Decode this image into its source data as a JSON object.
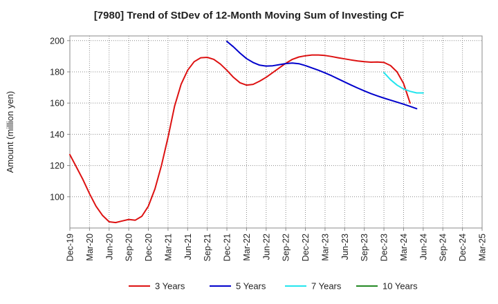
{
  "chart_data": {
    "type": "line",
    "title": "[7980]  Trend of StDev of 12-Month Moving Sum of Investing CF",
    "xlabel": "",
    "ylabel": "Amount (million yen)",
    "ylim": [
      80,
      203
    ],
    "y_ticks": [
      100,
      120,
      140,
      160,
      180,
      200
    ],
    "x_ticks": [
      "Dec-19",
      "Mar-20",
      "Jun-20",
      "Sep-20",
      "Dec-20",
      "Mar-21",
      "Jun-21",
      "Sep-21",
      "Dec-21",
      "Mar-22",
      "Jun-22",
      "Sep-22",
      "Dec-22",
      "Mar-23",
      "Jun-23",
      "Sep-23",
      "Dec-23",
      "Mar-24",
      "Jun-24",
      "Sep-24",
      "Dec-24",
      "Mar-25"
    ],
    "grid": true,
    "legend_position": "bottom",
    "series": [
      {
        "name": "3 Years",
        "color": "#dd1111",
        "points": [
          [
            "Dec-19",
            127
          ],
          [
            "Jan-20",
            119
          ],
          [
            "Feb-20",
            111
          ],
          [
            "Mar-20",
            102
          ],
          [
            "Apr-20",
            94
          ],
          [
            "May-20",
            88
          ],
          [
            "Jun-20",
            84
          ],
          [
            "Jul-20",
            83.5
          ],
          [
            "Aug-20",
            84.5
          ],
          [
            "Sep-20",
            85.5
          ],
          [
            "Oct-20",
            85
          ],
          [
            "Nov-20",
            87.5
          ],
          [
            "Dec-20",
            94
          ],
          [
            "Jan-21",
            105
          ],
          [
            "Feb-21",
            120
          ],
          [
            "Mar-21",
            138
          ],
          [
            "Apr-21",
            158
          ],
          [
            "May-21",
            172
          ],
          [
            "Jun-21",
            181
          ],
          [
            "Jul-21",
            186.5
          ],
          [
            "Aug-21",
            189
          ],
          [
            "Sep-21",
            189.3
          ],
          [
            "Oct-21",
            188
          ],
          [
            "Nov-21",
            185
          ],
          [
            "Dec-21",
            181
          ],
          [
            "Jan-22",
            176.5
          ],
          [
            "Feb-22",
            173
          ],
          [
            "Mar-22",
            171.5
          ],
          [
            "Apr-22",
            172
          ],
          [
            "May-22",
            174
          ],
          [
            "Jun-22",
            176.5
          ],
          [
            "Jul-22",
            179.5
          ],
          [
            "Aug-22",
            182.5
          ],
          [
            "Sep-22",
            185.5
          ],
          [
            "Oct-22",
            188
          ],
          [
            "Nov-22",
            189.5
          ],
          [
            "Dec-22",
            190.3
          ],
          [
            "Jan-23",
            190.8
          ],
          [
            "Feb-23",
            190.8
          ],
          [
            "Mar-23",
            190.5
          ],
          [
            "Apr-23",
            189.8
          ],
          [
            "May-23",
            189
          ],
          [
            "Jun-23",
            188.3
          ],
          [
            "Jul-23",
            187.6
          ],
          [
            "Aug-23",
            187
          ],
          [
            "Sep-23",
            186.5
          ],
          [
            "Oct-23",
            186.2
          ],
          [
            "Nov-23",
            186.3
          ],
          [
            "Dec-23",
            186
          ],
          [
            "Jan-24",
            184
          ],
          [
            "Feb-24",
            180
          ],
          [
            "Mar-24",
            172.5
          ],
          [
            "Apr-24",
            160
          ]
        ]
      },
      {
        "name": "5 Years",
        "color": "#0000cc",
        "points": [
          [
            "Dec-21",
            199.5
          ],
          [
            "Jan-22",
            196
          ],
          [
            "Feb-22",
            192
          ],
          [
            "Mar-22",
            188.5
          ],
          [
            "Apr-22",
            186
          ],
          [
            "May-22",
            184.3
          ],
          [
            "Jun-22",
            183.7
          ],
          [
            "Jul-22",
            183.9
          ],
          [
            "Aug-22",
            184.6
          ],
          [
            "Sep-22",
            185.3
          ],
          [
            "Oct-22",
            185.6
          ],
          [
            "Nov-22",
            185.2
          ],
          [
            "Dec-22",
            184
          ],
          [
            "Jan-23",
            182.5
          ],
          [
            "Feb-23",
            181
          ],
          [
            "Mar-23",
            179.3
          ],
          [
            "Apr-23",
            177.5
          ],
          [
            "May-23",
            175.5
          ],
          [
            "Jun-23",
            173.5
          ],
          [
            "Jul-23",
            171.5
          ],
          [
            "Aug-23",
            169.6
          ],
          [
            "Sep-23",
            167.8
          ],
          [
            "Oct-23",
            166.1
          ],
          [
            "Nov-23",
            164.6
          ],
          [
            "Dec-23",
            163.2
          ],
          [
            "Jan-24",
            161.9
          ],
          [
            "Feb-24",
            160.6
          ],
          [
            "Mar-24",
            159.3
          ],
          [
            "Apr-24",
            157.9
          ],
          [
            "May-24",
            156.4
          ]
        ]
      },
      {
        "name": "7 Years",
        "color": "#22e5ee",
        "points": [
          [
            "Dec-23",
            179.5
          ],
          [
            "Jan-24",
            175
          ],
          [
            "Feb-24",
            171.5
          ],
          [
            "Mar-24",
            169
          ],
          [
            "Apr-24",
            167.5
          ],
          [
            "May-24",
            166.5
          ],
          [
            "Jun-24",
            166.5
          ]
        ]
      },
      {
        "name": "10 Years",
        "color": "#228822",
        "points": []
      }
    ]
  }
}
